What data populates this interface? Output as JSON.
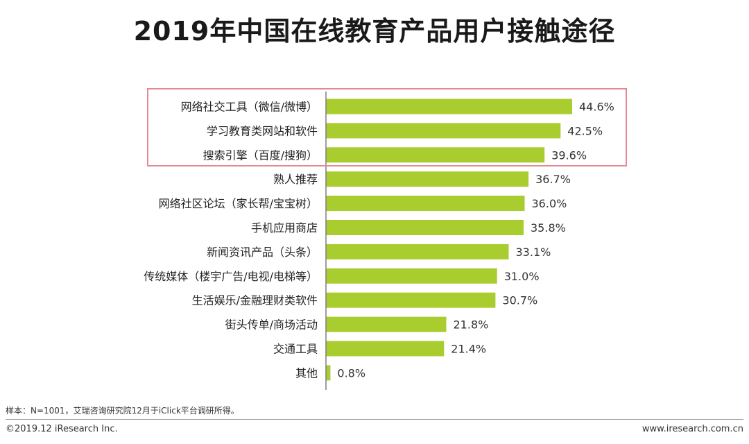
{
  "chart_data": {
    "type": "bar",
    "orientation": "horizontal",
    "title": "2019年中国在线教育产品用户接触途径",
    "categories": [
      "网络社交工具（微信/微博）",
      "学习教育类网站和软件",
      "搜索引擎（百度/搜狗）",
      "熟人推荐",
      "网络社区论坛（家长帮/宝宝树）",
      "手机应用商店",
      "新闻资讯产品（头条）",
      "传统媒体（楼宇广告/电视/电梯等）",
      "生活娱乐/金融理财类软件",
      "街头传单/商场活动",
      "交通工具",
      "其他"
    ],
    "values": [
      44.6,
      42.5,
      39.6,
      36.7,
      36.0,
      35.8,
      33.1,
      31.0,
      30.7,
      21.8,
      21.4,
      0.8
    ],
    "value_labels": [
      "44.6%",
      "42.5%",
      "39.6%",
      "36.7%",
      "36.0%",
      "35.8%",
      "33.1%",
      "31.0%",
      "30.7%",
      "21.8%",
      "21.4%",
      "0.8%"
    ],
    "unit": "%",
    "xlim": [
      0,
      44.6
    ],
    "highlighted_top_n": 3,
    "bar_color": "#a9cc2f",
    "highlight_color": "#e58a95",
    "axis_color": "#7f7f7f",
    "xlabel": "",
    "ylabel": ""
  },
  "footnote": "样本：N=1001，艾瑞咨询研究院12月于iClick平台调研所得。",
  "copyright": "©2019.12 iResearch Inc.",
  "website": "www.iresearch.com.cn"
}
